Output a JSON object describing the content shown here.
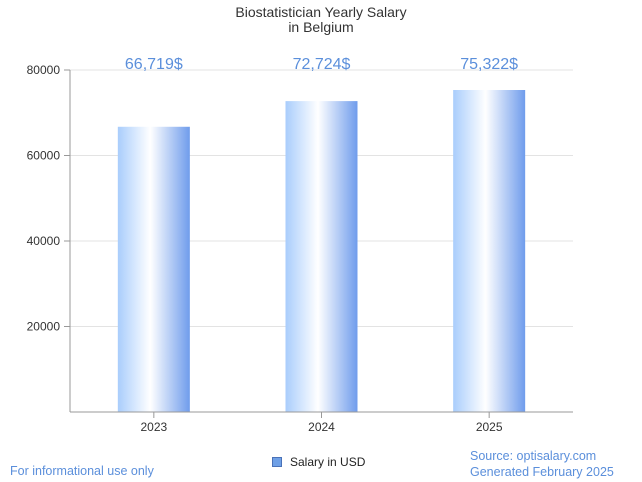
{
  "chart_data": {
    "type": "bar",
    "title_lines": [
      "Biostatistician Yearly Salary",
      "in Belgium"
    ],
    "categories": [
      "2023",
      "2024",
      "2025"
    ],
    "series": [
      {
        "name": "Salary in USD",
        "values": [
          66719,
          72724,
          75322
        ]
      }
    ],
    "data_labels": [
      "66,719$",
      "72,724$",
      "75,322$"
    ],
    "y_ticks": [
      20000,
      40000,
      60000,
      80000
    ],
    "ylim": [
      0,
      80000
    ],
    "grid": true,
    "legend_position": "bottom-center"
  },
  "footer": {
    "left": "For informational use only",
    "source": "Source: optisalary.com",
    "generated": "Generated February 2025"
  },
  "colors": {
    "bar_light": "#ffffff",
    "bar_mid": "#a9cdfc",
    "bar_dark": "#6f9cec",
    "accent": "#5b8fdb"
  }
}
